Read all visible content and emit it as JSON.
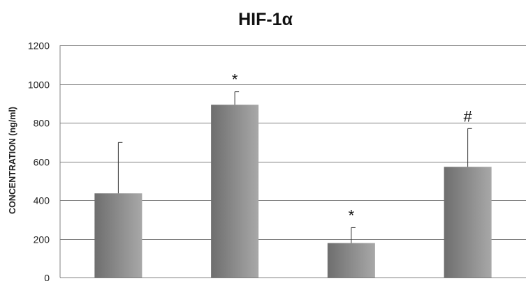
{
  "chart_data": {
    "type": "bar",
    "title": "HIF-1α",
    "xlabel": "",
    "ylabel": "CONCENTRATION (ng/ml)",
    "ylim": [
      0,
      1200
    ],
    "yticks": [
      0,
      200,
      400,
      600,
      800,
      1000,
      1200
    ],
    "grid": true,
    "legend": "none",
    "series": [
      {
        "values": [
          435,
          893,
          178,
          572
        ],
        "error_upper": [
          263,
          67,
          80,
          198
        ]
      }
    ],
    "annotations": [
      "",
      "*",
      "*",
      "#"
    ],
    "colors": {
      "bar_dark": "#6e6e6e",
      "bar_light": "#a8a8a8",
      "grid": "#808080"
    }
  }
}
